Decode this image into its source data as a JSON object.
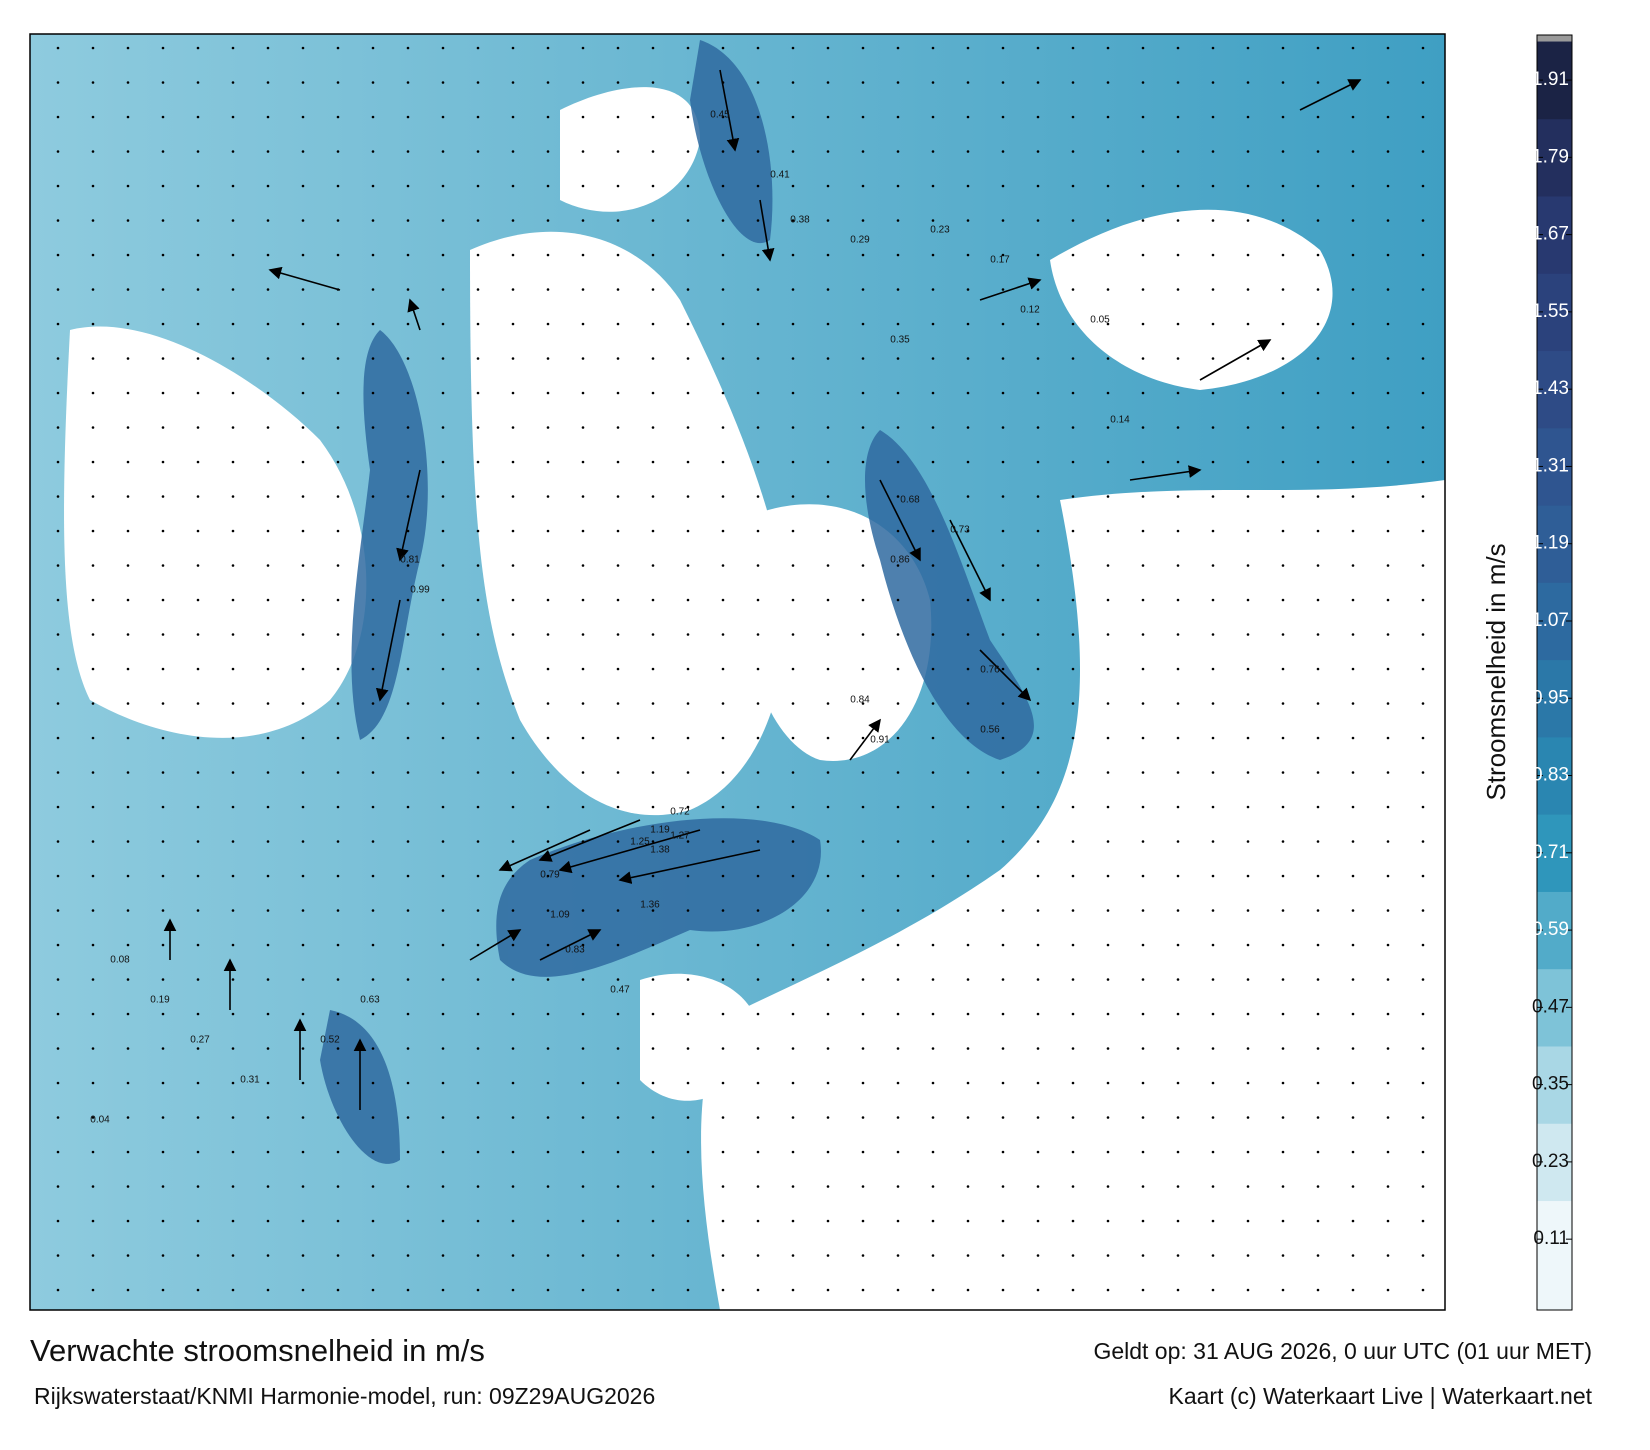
{
  "title": "Verwachte stroomsnelheid in m/s",
  "source": "Rijkswaterstaat/KNMI Harmonie-model, run: 09Z29AUG2026",
  "valid": "Geldt op: 31 AUG 2026, 0 uur UTC (01 uur MET)",
  "credit": "Kaart (c) Waterkaart Live | Waterkaart.net",
  "colorbar": {
    "label": "Stroomsnelheid in m/s",
    "lim": [
      0,
      1.98
    ],
    "ticks": [
      0.11,
      0.23,
      0.35,
      0.47,
      0.59,
      0.71,
      0.83,
      0.95,
      1.07,
      1.19,
      1.31,
      1.43,
      1.55,
      1.67,
      1.79,
      1.91
    ],
    "colors": [
      "#eef7fa",
      "#cfe8f0",
      "#a9d7e5",
      "#7ec3d8",
      "#52abc9",
      "#2f96bb",
      "#2a86b1",
      "#2b78a8",
      "#2d6aa0",
      "#2f5e97",
      "#2f5590",
      "#2e4b86",
      "#2b427c",
      "#283970",
      "#232f5e",
      "#1b2345"
    ],
    "over_color": "#9a9a9a"
  },
  "map_labels": [
    1.38,
    1.25,
    1.19,
    1.27,
    1.36,
    1.09,
    0.83,
    0.79,
    0.72,
    0.84,
    0.91,
    0.86,
    0.73,
    0.68,
    0.76,
    0.81,
    0.99,
    0.56,
    0.45,
    0.41,
    0.38,
    0.29,
    0.23,
    0.17,
    0.12,
    0.05,
    0.35,
    0.47,
    0.52,
    0.63,
    0.31,
    0.27,
    0.19,
    0.08,
    0.04,
    0.14
  ]
}
